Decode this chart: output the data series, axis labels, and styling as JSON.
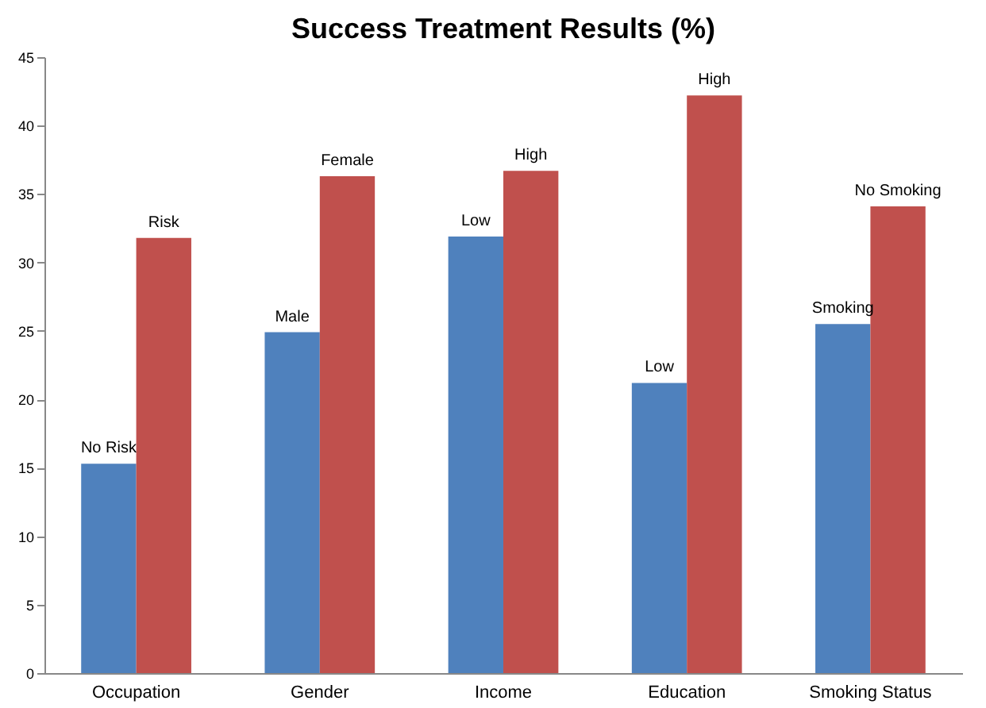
{
  "chart_data": {
    "type": "bar",
    "title": "Success Treatment Results (%)",
    "categories": [
      "Occupation",
      "Gender",
      "Income",
      "Education",
      "Smoking Status"
    ],
    "series": [
      {
        "color": "#4f81bd",
        "values": [
          15.3,
          24.9,
          31.9,
          21.2,
          25.5
        ]
      },
      {
        "color": "#c0504d",
        "values": [
          31.8,
          36.3,
          36.7,
          42.2,
          34.1
        ]
      }
    ],
    "ylim": [
      0,
      45
    ],
    "yticks": [
      0,
      5,
      10,
      15,
      20,
      25,
      30,
      35,
      40,
      45
    ],
    "grid": false,
    "legend": false,
    "annotations": [
      {
        "text": "No Risk",
        "x": "Occupation",
        "y": 15.3
      },
      {
        "text": "Risk",
        "x": "Occupation",
        "y": 31.8
      },
      {
        "text": "Male",
        "x": "Gender",
        "y": 24.9
      },
      {
        "text": "Female",
        "x": "Gender",
        "y": 36.3
      },
      {
        "text": "Low",
        "x": "Income",
        "y": 31.9
      },
      {
        "text": "High",
        "x": "Income",
        "y": 36.7
      },
      {
        "text": "Low",
        "x": "Education",
        "y": 21.2
      },
      {
        "text": "High",
        "x": "Education",
        "y": 42.2
      },
      {
        "text": "Smoking",
        "x": "Smoking Status",
        "y": 25.5
      },
      {
        "text": "No Smoking",
        "x": "Smoking Status",
        "y": 34.1
      }
    ]
  }
}
